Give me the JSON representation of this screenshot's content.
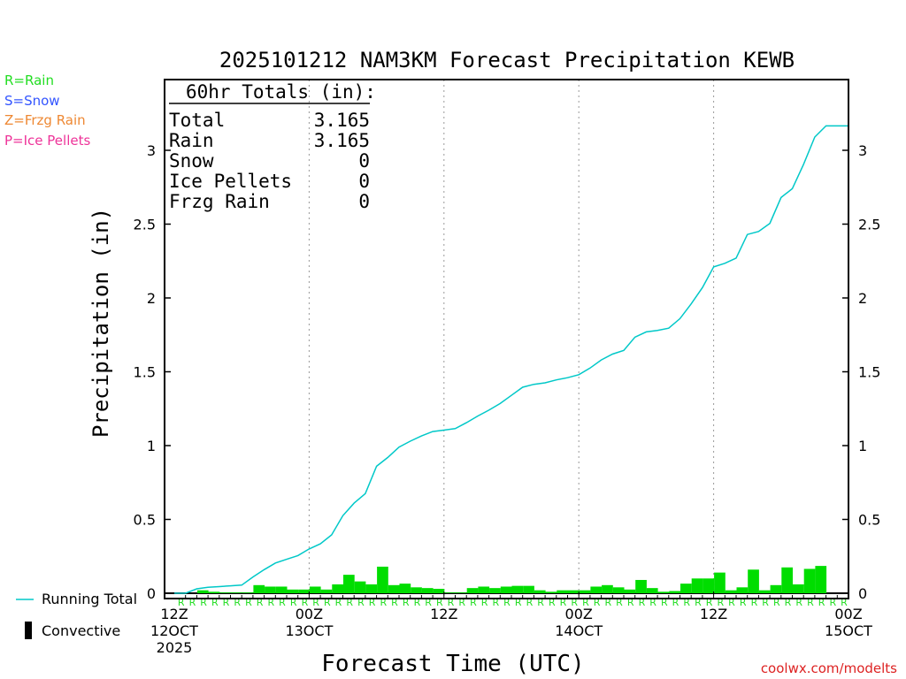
{
  "chart_data": {
    "type": "bar",
    "title": "2025101212 NAM3KM Forecast Precipitation KEWB",
    "xlabel": "Forecast Time (UTC)",
    "ylabel": "Precipitation (in)",
    "ylim": [
      0,
      3.5
    ],
    "xlim": [
      0,
      60
    ],
    "y_ticks": [
      0,
      0.5,
      1,
      1.5,
      2,
      2.5,
      3
    ],
    "y_tick_labels": [
      "0",
      "0.5",
      "1",
      "1.5",
      "2",
      "2.5",
      "3"
    ],
    "x_ticks": [
      {
        "hour": 0,
        "lines": [
          "12Z",
          "12OCT",
          "2025"
        ]
      },
      {
        "hour": 12,
        "lines": [
          "00Z",
          "13OCT"
        ]
      },
      {
        "hour": 24,
        "lines": [
          "12Z"
        ]
      },
      {
        "hour": 36,
        "lines": [
          "00Z",
          "14OCT"
        ]
      },
      {
        "hour": 48,
        "lines": [
          "12Z"
        ]
      },
      {
        "hour": 60,
        "lines": [
          "00Z",
          "15OCT"
        ]
      }
    ],
    "grid_hours": [
      12,
      24,
      36,
      48
    ],
    "hours": [
      1,
      2,
      3,
      4,
      5,
      6,
      7,
      8,
      9,
      10,
      11,
      12,
      13,
      14,
      15,
      16,
      17,
      18,
      19,
      20,
      21,
      22,
      23,
      24,
      25,
      26,
      27,
      28,
      29,
      30,
      31,
      32,
      33,
      34,
      35,
      36,
      37,
      38,
      39,
      40,
      41,
      42,
      43,
      44,
      45,
      46,
      47,
      48,
      49,
      50,
      51,
      52,
      53,
      54,
      55,
      56,
      57,
      58,
      59
    ],
    "series": [
      {
        "name": "Hourly Precip",
        "color": "#00dd00",
        "values": [
          0.0,
          0.0,
          0.02,
          0.01,
          0.005,
          0.005,
          0.005,
          0.055,
          0.045,
          0.045,
          0.025,
          0.025,
          0.045,
          0.025,
          0.06,
          0.125,
          0.08,
          0.06,
          0.18,
          0.055,
          0.065,
          0.04,
          0.035,
          0.03,
          0.005,
          0.005,
          0.035,
          0.045,
          0.035,
          0.045,
          0.05,
          0.05,
          0.02,
          0.01,
          0.02,
          0.02,
          0.02,
          0.045,
          0.055,
          0.04,
          0.025,
          0.09,
          0.035,
          0.01,
          0.015,
          0.065,
          0.1,
          0.1,
          0.14,
          0.02,
          0.04,
          0.16,
          0.02,
          0.055,
          0.175,
          0.06,
          0.165,
          0.185,
          0.0
        ]
      },
      {
        "name": "Running Total",
        "color": "#00c8c8",
        "hours": [
          0,
          1,
          2,
          3,
          4,
          5,
          6,
          7,
          8,
          9,
          10,
          11,
          12,
          13,
          14,
          15,
          16,
          17,
          18,
          19,
          20,
          21,
          22,
          23,
          24,
          25,
          26,
          27,
          28,
          29,
          30,
          31,
          32,
          33,
          34,
          35,
          36,
          37,
          38,
          39,
          40,
          41,
          42,
          43,
          44,
          45,
          46,
          47,
          48,
          49,
          50,
          51,
          52,
          53,
          54,
          55,
          56,
          57,
          58,
          59,
          60
        ],
        "values": [
          0,
          0,
          0.03,
          0.04,
          0.045,
          0.05,
          0.055,
          0.11,
          0.16,
          0.205,
          0.23,
          0.255,
          0.3,
          0.335,
          0.395,
          0.525,
          0.61,
          0.675,
          0.86,
          0.92,
          0.99,
          1.03,
          1.065,
          1.095,
          1.105,
          1.115,
          1.155,
          1.2,
          1.24,
          1.285,
          1.34,
          1.395,
          1.415,
          1.425,
          1.445,
          1.46,
          1.48,
          1.525,
          1.58,
          1.62,
          1.645,
          1.735,
          1.77,
          1.78,
          1.795,
          1.86,
          1.96,
          2.07,
          2.21,
          2.235,
          2.27,
          2.43,
          2.45,
          2.505,
          2.68,
          2.74,
          2.905,
          3.09,
          3.165,
          3.165,
          3.165
        ]
      }
    ],
    "precip_type_codes": {
      "hours": [
        1,
        2,
        3,
        4,
        5,
        6,
        7,
        8,
        9,
        10,
        11,
        12,
        13,
        14,
        15,
        16,
        17,
        18,
        19,
        20,
        21,
        22,
        23,
        24,
        25,
        26,
        27,
        28,
        29,
        30,
        31,
        32,
        33,
        34,
        35,
        36,
        37,
        38,
        39,
        40,
        41,
        42,
        43,
        44,
        45,
        46,
        47,
        48,
        49,
        50,
        51,
        52,
        53,
        54,
        55,
        56,
        57,
        58,
        59,
        60
      ],
      "code": "R"
    },
    "annotations": {
      "totals_header": "60hr Totals (in):",
      "totals": [
        {
          "label": "Total",
          "value": "3.165"
        },
        {
          "label": "Rain",
          "value": "3.165"
        },
        {
          "label": "Snow",
          "value": "0"
        },
        {
          "label": "Ice Pellets",
          "value": "0"
        },
        {
          "label": "Frzg Rain",
          "value": "0"
        }
      ]
    }
  },
  "precip_type_legend": [
    {
      "text": "R=Rain",
      "color": "#22dd22"
    },
    {
      "text": "S=Snow",
      "color": "#3355ff"
    },
    {
      "text": "Z=Frzg Rain",
      "color": "#ee8833"
    },
    {
      "text": "P=Ice Pellets",
      "color": "#ee3399"
    }
  ],
  "bottom_legend": {
    "running_total": "Running Total",
    "convective": "Convective"
  },
  "credit": "coolwx.com/modelts",
  "colors": {
    "bar": "#00dd00",
    "line": "#00c8c8",
    "rain_code": "#22dd22",
    "grid": "#999999",
    "credit": "#dd2222"
  }
}
